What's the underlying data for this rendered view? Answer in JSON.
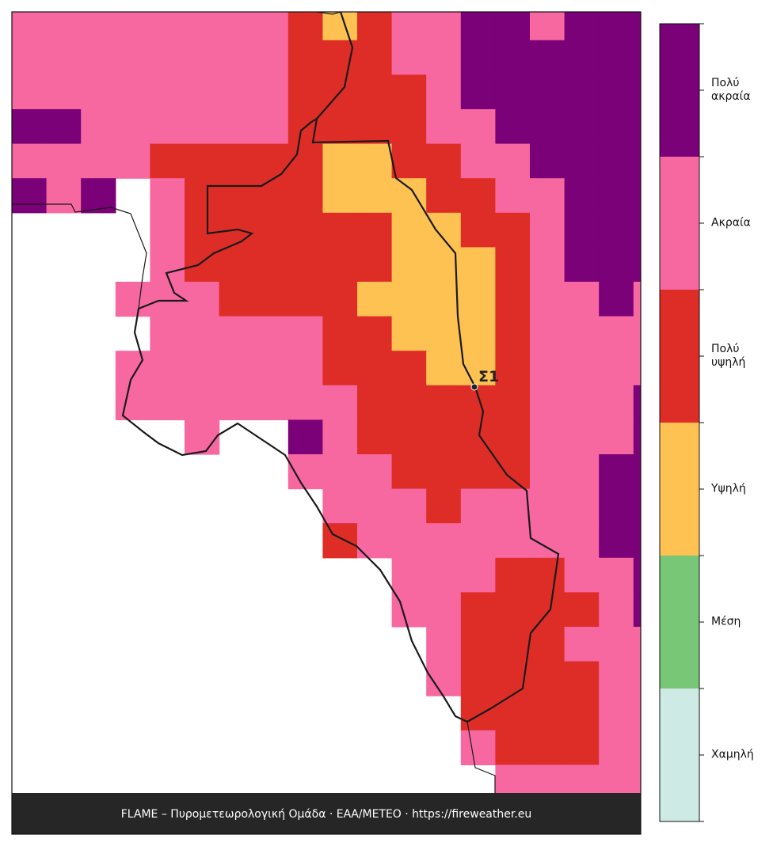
{
  "legend": {
    "categories": [
      "Χαμηλή",
      "Μέση",
      "Υψηλή",
      "Πολύ υψηλή",
      "Ακραία",
      "Πολύ ακραία"
    ],
    "colors": [
      "#cdebe4",
      "#77c776",
      "#fec252",
      "#de2d26",
      "#f768a1",
      "#7a0177"
    ]
  },
  "map": {
    "grid": [
      [
        4,
        4,
        4,
        4,
        4,
        4,
        4,
        4,
        3,
        2,
        3,
        4,
        4,
        5,
        5,
        4,
        5,
        5,
        5
      ],
      [
        4,
        4,
        4,
        4,
        4,
        4,
        4,
        4,
        3,
        3,
        3,
        4,
        4,
        5,
        5,
        5,
        5,
        5,
        5
      ],
      [
        4,
        4,
        4,
        4,
        4,
        4,
        4,
        4,
        3,
        3,
        3,
        3,
        4,
        5,
        5,
        5,
        5,
        5,
        5
      ],
      [
        5,
        5,
        4,
        4,
        4,
        4,
        4,
        4,
        3,
        3,
        3,
        3,
        4,
        4,
        5,
        5,
        5,
        5,
        5
      ],
      [
        4,
        4,
        4,
        4,
        3,
        3,
        3,
        3,
        3,
        2,
        2,
        3,
        3,
        4,
        4,
        5,
        5,
        5,
        5
      ],
      [
        5,
        4,
        5,
        null,
        4,
        3,
        3,
        3,
        3,
        2,
        2,
        2,
        3,
        3,
        4,
        4,
        5,
        5,
        5
      ],
      [
        null,
        null,
        null,
        null,
        4,
        3,
        3,
        3,
        3,
        3,
        3,
        2,
        2,
        3,
        3,
        4,
        5,
        5,
        5
      ],
      [
        null,
        null,
        null,
        null,
        4,
        3,
        3,
        3,
        3,
        3,
        3,
        2,
        2,
        2,
        3,
        4,
        5,
        5,
        5
      ],
      [
        null,
        null,
        null,
        4,
        4,
        4,
        3,
        3,
        3,
        3,
        2,
        2,
        2,
        2,
        3,
        4,
        4,
        5,
        4
      ],
      [
        null,
        null,
        null,
        null,
        4,
        4,
        4,
        4,
        4,
        3,
        3,
        2,
        2,
        2,
        3,
        4,
        4,
        4,
        4
      ],
      [
        null,
        null,
        null,
        4,
        4,
        4,
        4,
        4,
        4,
        3,
        3,
        3,
        2,
        2,
        3,
        4,
        4,
        4,
        4
      ],
      [
        null,
        null,
        null,
        4,
        4,
        4,
        4,
        4,
        4,
        4,
        3,
        3,
        3,
        3,
        3,
        4,
        4,
        4,
        5
      ],
      [
        null,
        null,
        null,
        null,
        null,
        4,
        null,
        null,
        5,
        4,
        3,
        3,
        3,
        3,
        3,
        4,
        4,
        4,
        5
      ],
      [
        null,
        null,
        null,
        null,
        null,
        null,
        null,
        null,
        4,
        4,
        4,
        3,
        3,
        3,
        3,
        4,
        4,
        5,
        5
      ],
      [
        null,
        null,
        null,
        null,
        null,
        null,
        null,
        null,
        null,
        4,
        4,
        4,
        3,
        4,
        4,
        4,
        4,
        5,
        5
      ],
      [
        null,
        null,
        null,
        null,
        null,
        null,
        null,
        null,
        null,
        3,
        4,
        4,
        4,
        4,
        4,
        4,
        4,
        5,
        5
      ],
      [
        null,
        null,
        null,
        null,
        null,
        null,
        null,
        null,
        null,
        null,
        null,
        4,
        4,
        4,
        3,
        3,
        4,
        4,
        5
      ],
      [
        null,
        null,
        null,
        null,
        null,
        null,
        null,
        null,
        null,
        null,
        null,
        4,
        4,
        3,
        3,
        3,
        3,
        4,
        5
      ],
      [
        null,
        null,
        null,
        null,
        null,
        null,
        null,
        null,
        null,
        null,
        null,
        null,
        4,
        3,
        3,
        3,
        4,
        4,
        4
      ],
      [
        null,
        null,
        null,
        null,
        null,
        null,
        null,
        null,
        null,
        null,
        null,
        null,
        4,
        3,
        3,
        3,
        3,
        4,
        4
      ],
      [
        null,
        null,
        null,
        null,
        null,
        null,
        null,
        null,
        null,
        null,
        null,
        null,
        null,
        3,
        3,
        3,
        3,
        4,
        4
      ],
      [
        null,
        null,
        null,
        null,
        null,
        null,
        null,
        null,
        null,
        null,
        null,
        null,
        null,
        4,
        3,
        3,
        3,
        4,
        4
      ],
      [
        null,
        null,
        null,
        null,
        null,
        null,
        null,
        null,
        null,
        null,
        null,
        null,
        null,
        null,
        4,
        4,
        4,
        4,
        4
      ]
    ]
  },
  "station": {
    "label": "Σ1"
  },
  "footer": "FLAME – Πυρομετεωρολογική Ομάδα · ΕΑΑ/METEO · https://fireweather.eu"
}
